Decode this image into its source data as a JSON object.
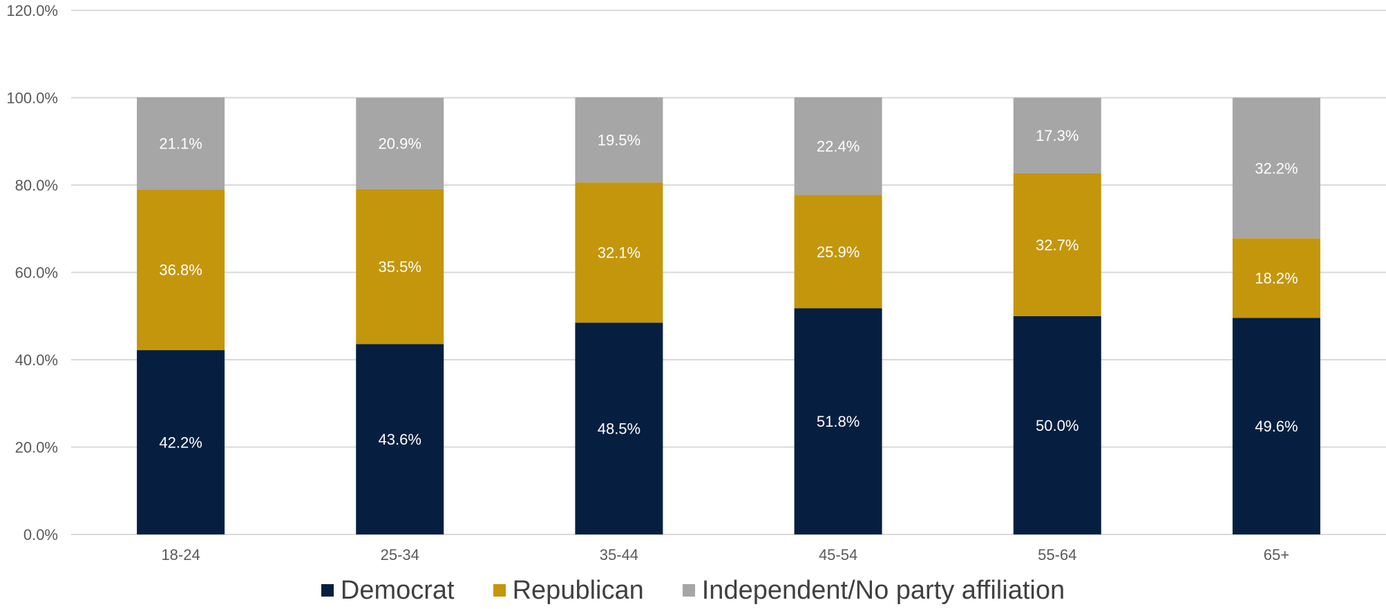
{
  "chart_data": {
    "type": "bar",
    "stacked": true,
    "categories": [
      "18-24",
      "25-34",
      "35-44",
      "45-54",
      "55-64",
      "65+"
    ],
    "series": [
      {
        "name": "Democrat",
        "color": "#061f40",
        "values": [
          42.2,
          43.6,
          48.5,
          51.8,
          50.0,
          49.6
        ],
        "labels": [
          "42.2%",
          "43.6%",
          "48.5%",
          "51.8%",
          "50.0%",
          "49.6%"
        ]
      },
      {
        "name": "Republican",
        "color": "#c4960c",
        "values": [
          36.8,
          35.5,
          32.1,
          25.9,
          32.7,
          18.2
        ],
        "labels": [
          "36.8%",
          "35.5%",
          "32.1%",
          "25.9%",
          "32.7%",
          "18.2%"
        ]
      },
      {
        "name": "Independent/No party affiliation",
        "color": "#a6a6a6",
        "values": [
          21.1,
          20.9,
          19.5,
          22.4,
          17.3,
          32.2
        ],
        "labels": [
          "21.1%",
          "20.9%",
          "19.5%",
          "22.4%",
          "17.3%",
          "32.2%"
        ]
      }
    ],
    "ylim": [
      0,
      120
    ],
    "yticks": [
      0,
      20,
      40,
      60,
      80,
      100,
      120
    ],
    "ytick_labels": [
      "0.0%",
      "20.0%",
      "40.0%",
      "60.0%",
      "80.0%",
      "100.0%",
      "120.0%"
    ],
    "grid": true,
    "legend_position": "bottom",
    "gridline_color": "#d9d9d9",
    "axis_text_color": "#595959"
  }
}
